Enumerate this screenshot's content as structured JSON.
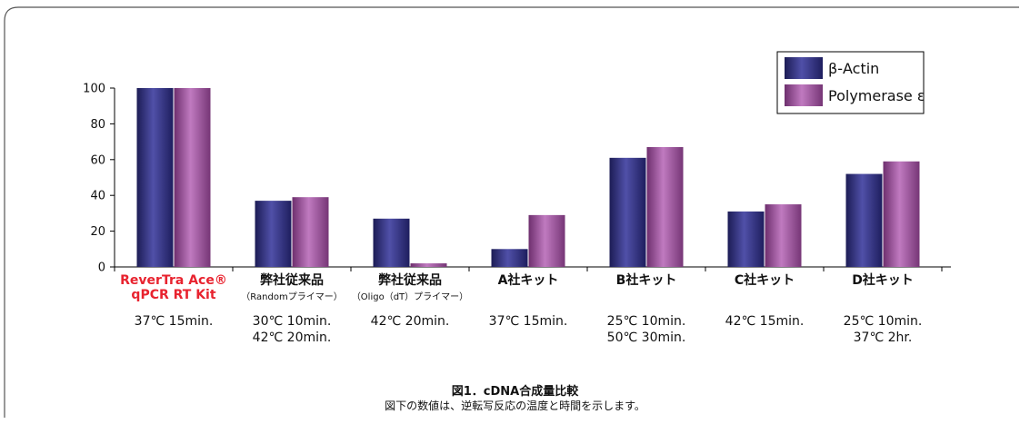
{
  "chart_data": {
    "type": "bar",
    "ylim": [
      0,
      100
    ],
    "yticks": [
      0,
      20,
      40,
      60,
      80,
      100
    ],
    "categories": [
      {
        "name": [
          "ReverTra Ace®",
          "qPCR RT Kit"
        ],
        "sub": "",
        "conditions": [
          "37℃ 15min."
        ],
        "highlight": true
      },
      {
        "name": [
          "弊社従来品"
        ],
        "sub": "（Randomプライマー）",
        "conditions": [
          "30℃ 10min.",
          "42℃ 20min."
        ],
        "highlight": false
      },
      {
        "name": [
          "弊社従来品"
        ],
        "sub": "（Oligo（dT）プライマー）",
        "conditions": [
          "42℃ 20min."
        ],
        "highlight": false
      },
      {
        "name": [
          "A社キット"
        ],
        "sub": "",
        "conditions": [
          "37℃ 15min."
        ],
        "highlight": false
      },
      {
        "name": [
          "B社キット"
        ],
        "sub": "",
        "conditions": [
          "25℃ 10min.",
          "50℃ 30min."
        ],
        "highlight": false
      },
      {
        "name": [
          "C社キット"
        ],
        "sub": "",
        "conditions": [
          "42℃ 15min."
        ],
        "highlight": false
      },
      {
        "name": [
          "D社キット"
        ],
        "sub": "",
        "conditions": [
          "25℃ 10min.",
          "37℃ 2hr."
        ],
        "highlight": false
      }
    ],
    "series": [
      {
        "name": "β-Actin",
        "values": [
          100,
          37,
          27,
          10,
          61,
          31,
          52
        ],
        "color": "#2e2e7e"
      },
      {
        "name": "Polymerase ε",
        "values": [
          100,
          39,
          2,
          29,
          67,
          35,
          59
        ],
        "color": "#8e4a8e"
      }
    ],
    "legend_position": "top-right",
    "highlight_color": "#e8232f"
  },
  "caption": {
    "title": "図1．cDNA合成量比較",
    "subtitle": "図下の数値は、逆転写反応の温度と時間を示します。"
  }
}
